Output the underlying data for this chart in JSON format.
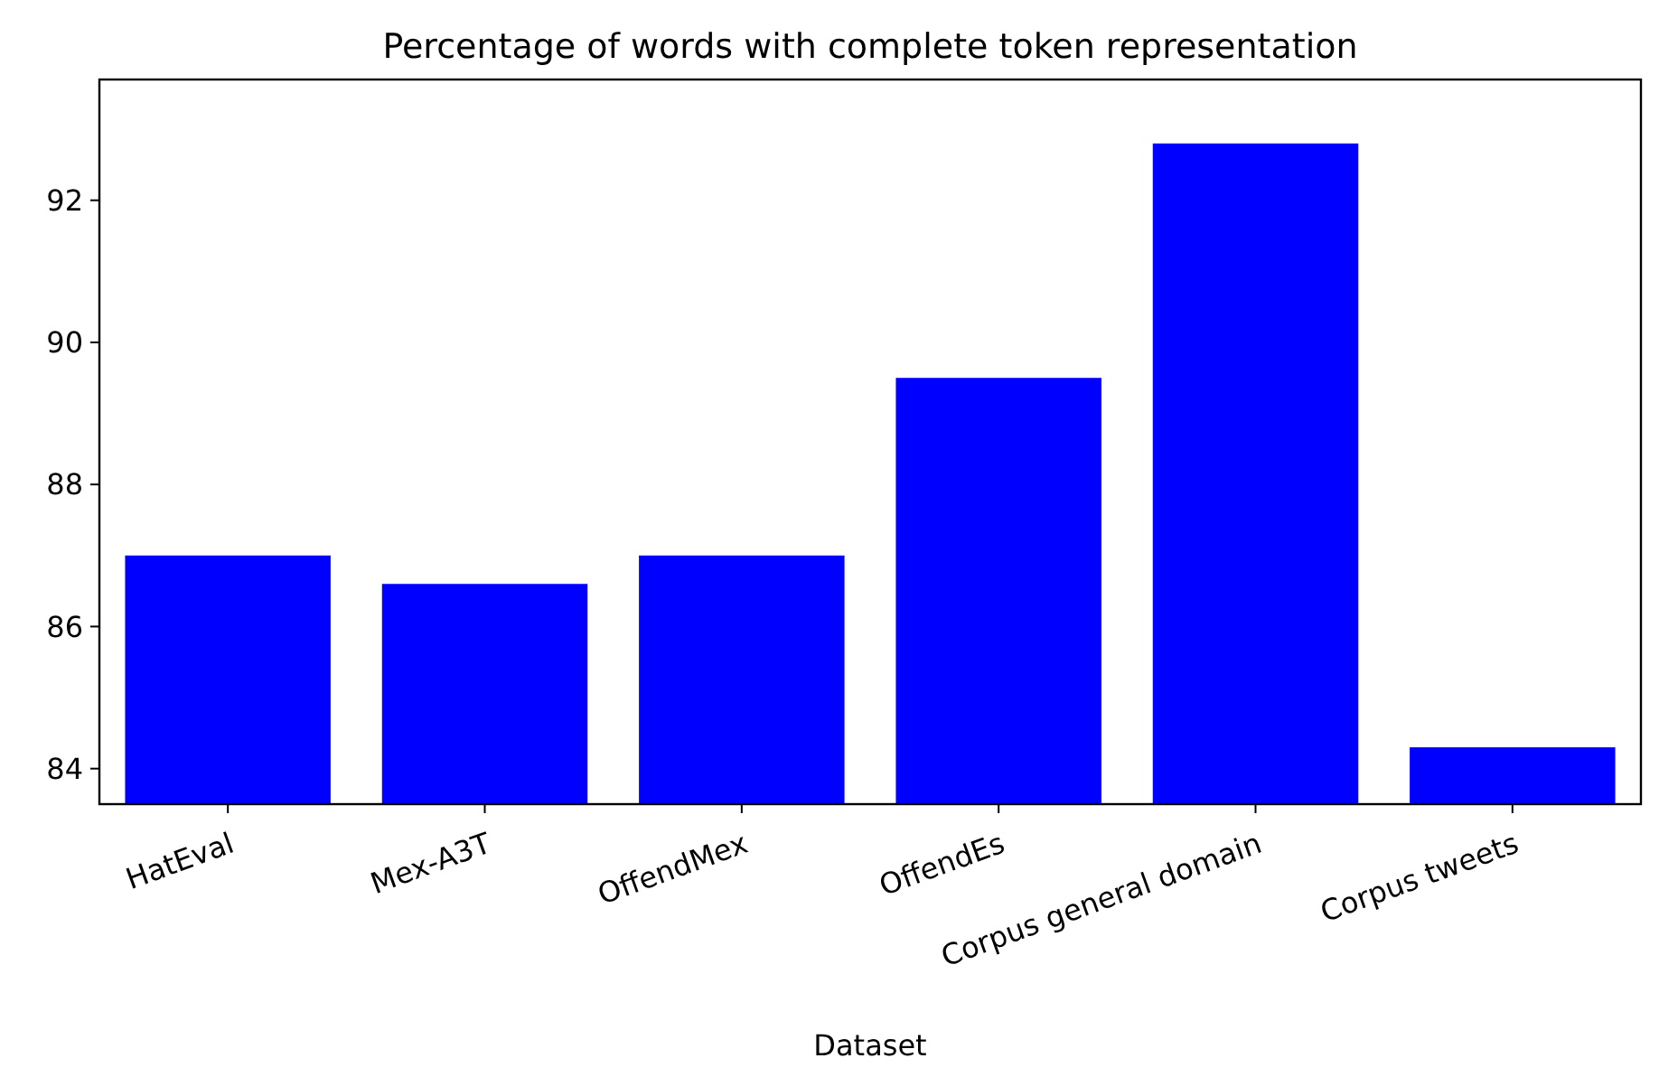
{
  "chart_data": {
    "type": "bar",
    "title": "Percentage of words with complete token representation",
    "xlabel": "Dataset",
    "categories": [
      "HatEval",
      "Mex-A3T",
      "OffendMex",
      "OffendEs",
      "Corpus general domain",
      "Corpus tweets"
    ],
    "values": [
      87.0,
      86.6,
      87.0,
      89.5,
      92.8,
      84.3
    ],
    "color": "#0000ff",
    "ylim": [
      83.5,
      93.7
    ],
    "yticks": [
      84,
      86,
      88,
      90,
      92
    ],
    "grid": false
  }
}
